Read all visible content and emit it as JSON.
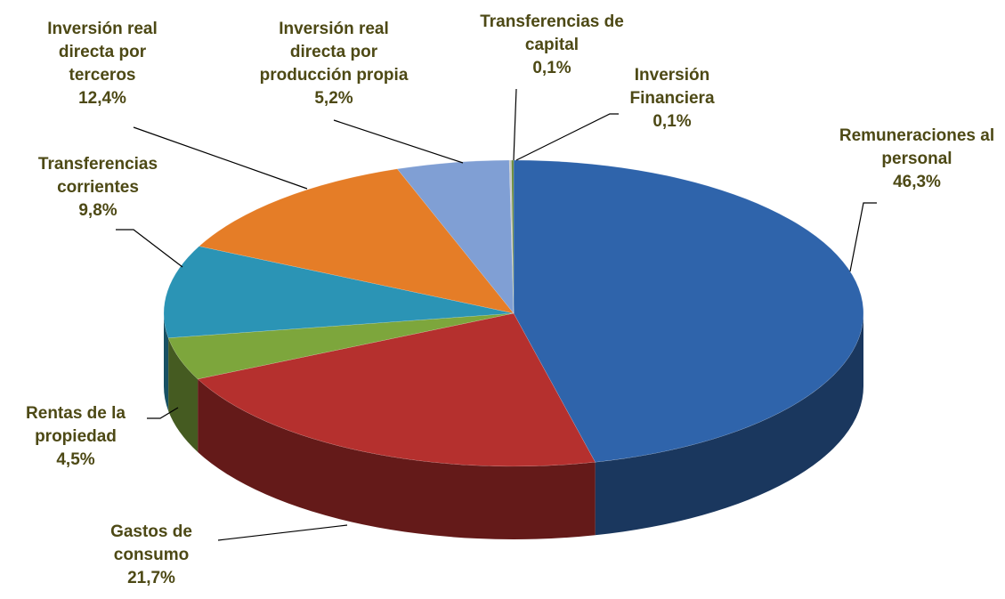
{
  "chart_data": {
    "type": "pie3d",
    "categories": [
      "Remuneraciones al personal",
      "Gastos de consumo",
      "Rentas de la propiedad",
      "Transferencias corrientes",
      "Inversión real directa por terceros",
      "Inversión real directa por producción propia",
      "Inversión Financiera",
      "Transferencias de capital"
    ],
    "values": [
      46.3,
      21.7,
      4.5,
      9.8,
      12.4,
      5.2,
      0.1,
      0.1
    ],
    "value_labels": [
      "46,3%",
      "21,7%",
      "4,5%",
      "9,8%",
      "12,4%",
      "5,2%",
      "0,1%",
      "0,1%"
    ],
    "colors": [
      "#2f64ab",
      "#b5302e",
      "#7da63c",
      "#2b94b5",
      "#e57d27",
      "#809fd4",
      "#c8c8c8",
      "#6c8c3c"
    ]
  }
}
